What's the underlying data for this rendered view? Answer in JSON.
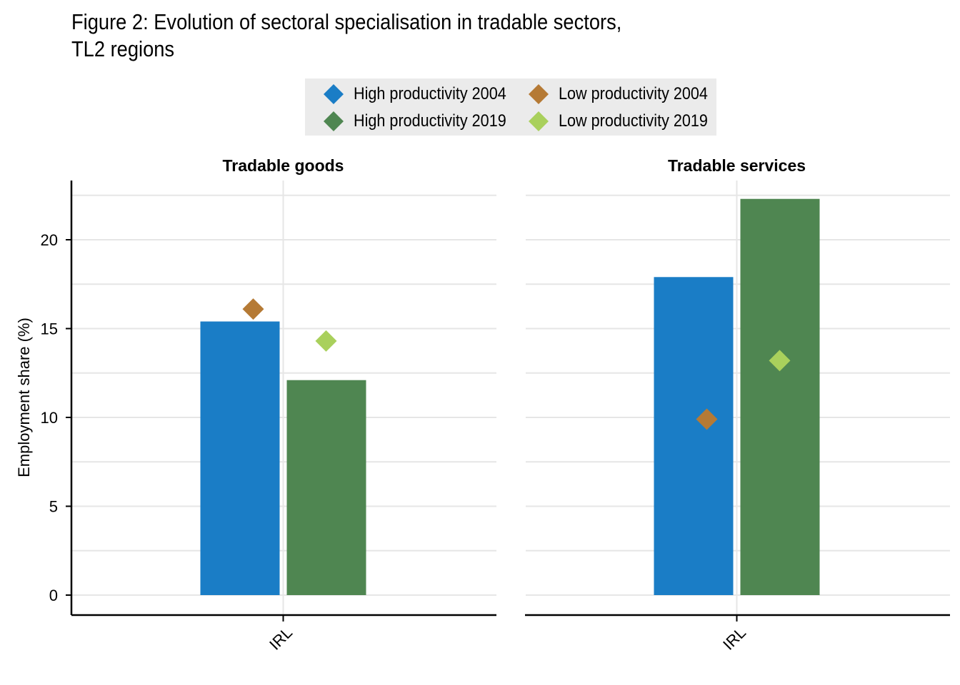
{
  "title": {
    "line1": "Figure 2: Evolution of sectoral specialisation in tradable sectors,",
    "line2": "TL2 regions"
  },
  "legend": [
    {
      "label": "High productivity 2004",
      "color": "#1a7dc6"
    },
    {
      "label": "Low productivity 2004",
      "color": "#b57a35"
    },
    {
      "label": "High productivity 2019",
      "color": "#4f8651"
    },
    {
      "label": "Low productivity 2019",
      "color": "#a9d05c"
    }
  ],
  "chart_data": {
    "type": "bar",
    "ylabel": "Employment share (%)",
    "ylim": [
      0,
      23.5
    ],
    "yticks": [
      0,
      5,
      10,
      15,
      20
    ],
    "grid": true,
    "legend_position": "top-center",
    "panels": [
      {
        "title": "Tradable goods",
        "categories": [
          "IRL"
        ],
        "bars": [
          {
            "name": "High productivity 2004",
            "values": [
              15.4
            ],
            "color": "#1a7dc6"
          },
          {
            "name": "High productivity 2019",
            "values": [
              12.1
            ],
            "color": "#4f8651"
          }
        ],
        "points": [
          {
            "name": "Low productivity 2004",
            "values": [
              16.1
            ],
            "color": "#b57a35"
          },
          {
            "name": "Low productivity 2019",
            "values": [
              14.3
            ],
            "color": "#a9d05c"
          }
        ]
      },
      {
        "title": "Tradable services",
        "categories": [
          "IRL"
        ],
        "bars": [
          {
            "name": "High productivity 2004",
            "values": [
              17.9
            ],
            "color": "#1a7dc6"
          },
          {
            "name": "High productivity 2019",
            "values": [
              22.3
            ],
            "color": "#4f8651"
          }
        ],
        "points": [
          {
            "name": "Low productivity 2004",
            "values": [
              9.9
            ],
            "color": "#b57a35"
          },
          {
            "name": "Low productivity 2019",
            "values": [
              13.2
            ],
            "color": "#a9d05c"
          }
        ]
      }
    ]
  }
}
